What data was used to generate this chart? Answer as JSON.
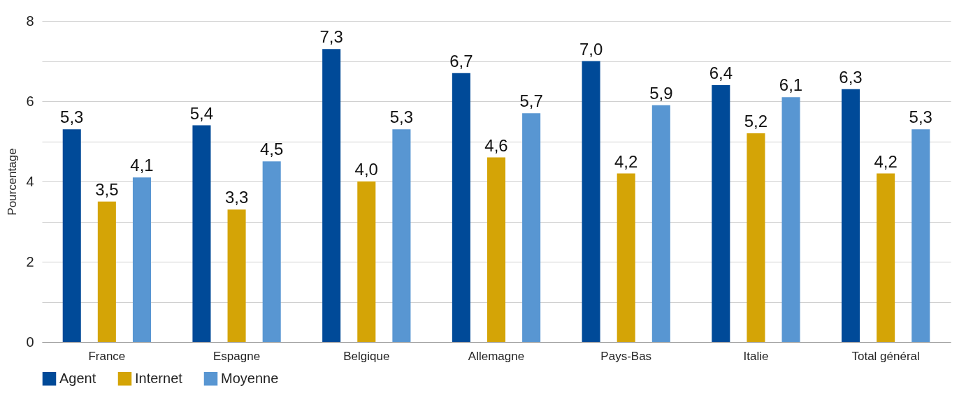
{
  "chart_data": {
    "type": "bar",
    "ylabel": "Pourcentage",
    "categories": [
      "France",
      "Espagne",
      "Belgique",
      "Allemagne",
      "Pays-Bas",
      "Italie",
      "Total général"
    ],
    "series": [
      {
        "name": "Agent",
        "color": "#004a98",
        "values": [
          5.3,
          5.4,
          7.3,
          6.7,
          7.0,
          6.4,
          6.3
        ],
        "value_labels": [
          "5,3",
          "5,4",
          "7,3",
          "6,7",
          "7,0",
          "6,4",
          "6,3"
        ]
      },
      {
        "name": "Internet",
        "color": "#d4a406",
        "values": [
          3.5,
          3.3,
          4.0,
          4.6,
          4.2,
          5.2,
          4.2
        ],
        "value_labels": [
          "3,5",
          "3,3",
          "4,0",
          "4,6",
          "4,2",
          "5,2",
          "4,2"
        ]
      },
      {
        "name": "Moyenne",
        "color": "#5896d2",
        "values": [
          4.1,
          4.5,
          5.3,
          5.7,
          5.9,
          6.1,
          5.3
        ],
        "value_labels": [
          "4,1",
          "4,5",
          "5,3",
          "5,7",
          "5,9",
          "6,1",
          "5,3"
        ]
      }
    ],
    "ylim": [
      0,
      8
    ],
    "yticks": [
      0,
      {
        "value": 1,
        "label": null
      },
      2,
      {
        "value": 3,
        "label": null
      },
      4,
      {
        "value": 5,
        "label": null
      },
      6,
      {
        "value": 7,
        "label": null
      },
      8
    ],
    "grid": "y",
    "legend": "bottom left"
  }
}
